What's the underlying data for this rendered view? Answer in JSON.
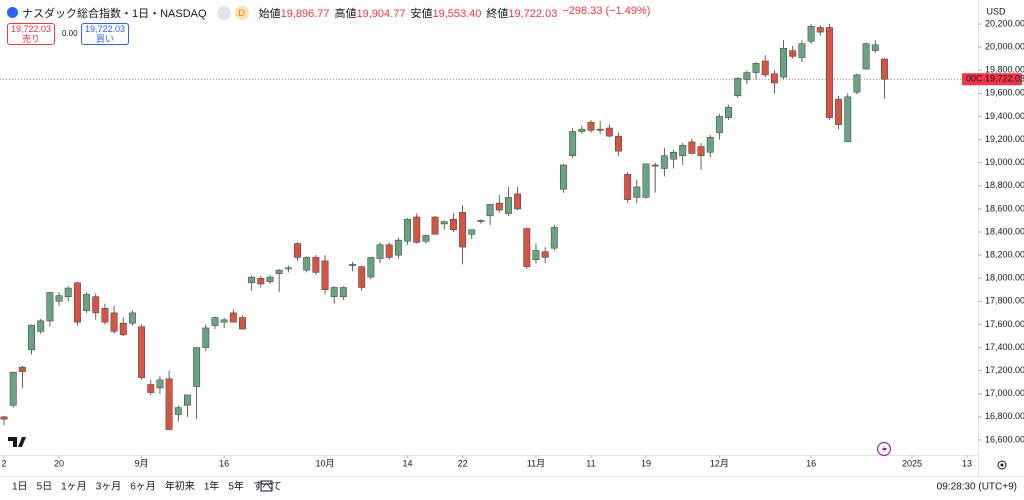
{
  "header": {
    "title": "ナスダック総合指数・1日・NASDAQ",
    "market_status": "D",
    "ohlc": [
      {
        "label": "始値",
        "value": "19,896.77"
      },
      {
        "label": "高値",
        "value": "19,904.77"
      },
      {
        "label": "安値",
        "value": "19,553.40"
      },
      {
        "label": "終値",
        "value": "19,722.03"
      }
    ],
    "change": "−298.33 (−1.49%)"
  },
  "trade_panel": {
    "sell_price": "19,722.03",
    "sell_label": "売り",
    "spread": "0.00",
    "buy_price": "19,722.03",
    "buy_label": "買い"
  },
  "axis_panel": {
    "currency": "USD",
    "countdown": "00C"
  },
  "chart_data": {
    "type": "candlestick",
    "up_color": "#6aa381",
    "down_color": "#d65443",
    "wick_color": "#3c3c3c",
    "grid": false,
    "last_price": {
      "value": 19722.03,
      "label": "19,722.03"
    },
    "last_price_color": "#f23645",
    "xlim": [
      -0.44,
      106.2
    ],
    "ylim": [
      16470,
      20408
    ],
    "xticks": [
      {
        "value": 0,
        "label": "2"
      },
      {
        "value": 6,
        "label": "20"
      },
      {
        "value": 15,
        "label": "9月"
      },
      {
        "value": 24,
        "label": "16"
      },
      {
        "value": 35,
        "label": "10月"
      },
      {
        "value": 44,
        "label": "14"
      },
      {
        "value": 50,
        "label": "22"
      },
      {
        "value": 58,
        "label": "11月"
      },
      {
        "value": 64,
        "label": "11"
      },
      {
        "value": 70,
        "label": "19"
      },
      {
        "value": 78,
        "label": "12月"
      },
      {
        "value": 88,
        "label": "16"
      },
      {
        "value": 99,
        "label": "2025"
      },
      {
        "value": 105,
        "label": "13"
      }
    ],
    "yticks": [
      {
        "value": 16600,
        "label": "16,600.00"
      },
      {
        "value": 16800,
        "label": "16,800.00"
      },
      {
        "value": 17000,
        "label": "17,000.00"
      },
      {
        "value": 17200,
        "label": "17,200.00"
      },
      {
        "value": 17400,
        "label": "17,400.00"
      },
      {
        "value": 17600,
        "label": "17,600.00"
      },
      {
        "value": 17800,
        "label": "17,800.00"
      },
      {
        "value": 18000,
        "label": "18,000.00"
      },
      {
        "value": 18200,
        "label": "18,200.00"
      },
      {
        "value": 18400,
        "label": "18,400.00"
      },
      {
        "value": 18600,
        "label": "18,600.00"
      },
      {
        "value": 18800,
        "label": "18,800.00"
      },
      {
        "value": 19000,
        "label": "19,000.00"
      },
      {
        "value": 19200,
        "label": "19,200.00"
      },
      {
        "value": 19400,
        "label": "19,400.00"
      },
      {
        "value": 19600,
        "label": "19,600.00"
      },
      {
        "value": 19800,
        "label": "19,800.00"
      },
      {
        "value": 20000,
        "label": "20,000.00"
      },
      {
        "value": 20200,
        "label": "20,200.00"
      }
    ],
    "open": [
      16800,
      16900,
      17230,
      17380,
      17540,
      17630,
      17800,
      17840,
      17960,
      17720,
      17840,
      17740,
      17700,
      17610,
      17610,
      17580,
      17080,
      17050,
      17130,
      16820,
      16900,
      17060,
      17400,
      17590,
      17620,
      17700,
      17660,
      17960,
      18000,
      17970,
      18040,
      18080,
      18300,
      18070,
      18180,
      18150,
      17840,
      17840,
      18110,
      18100,
      18010,
      18170,
      18290,
      18200,
      18320,
      18530,
      18320,
      18530,
      18470,
      18510,
      18570,
      18380,
      18490,
      18540,
      18650,
      18560,
      18730,
      18430,
      18160,
      18230,
      18260,
      18770,
      19060,
      19270,
      19350,
      19290,
      19300,
      19230,
      18900,
      18700,
      18700,
      18980,
      18950,
      19030,
      19060,
      19180,
      19140,
      19090,
      19260,
      19390,
      19580,
      19720,
      19780,
      19880,
      19770,
      19740,
      19970,
      19910,
      20050,
      20170,
      20170,
      19550,
      19180,
      19610,
      19810,
      19970,
      19896.77
    ],
    "high": [
      16810,
      17190,
      17240,
      17600,
      17650,
      17880,
      17880,
      17930,
      17970,
      17880,
      17870,
      17780,
      17760,
      17660,
      17720,
      17600,
      17120,
      17150,
      17200,
      16900,
      16990,
      17400,
      17600,
      17670,
      17660,
      17730,
      17680,
      18020,
      18020,
      18030,
      18080,
      18110,
      18310,
      18190,
      18200,
      18200,
      17930,
      17930,
      18140,
      18110,
      18180,
      18310,
      18310,
      18350,
      18520,
      18560,
      18380,
      18540,
      18500,
      18560,
      18630,
      18400,
      18510,
      18640,
      18720,
      18790,
      18790,
      18440,
      18300,
      18270,
      18460,
      18990,
      19300,
      19320,
      19370,
      19360,
      19330,
      19260,
      18920,
      18850,
      18990,
      19000,
      19130,
      19110,
      19170,
      19210,
      19170,
      19240,
      19420,
      19500,
      19740,
      19800,
      19870,
      19930,
      19800,
      20060,
      20010,
      20060,
      20200,
      20190,
      20200,
      19580,
      19600,
      19770,
      20040,
      20060,
      19904.77
    ],
    "low": [
      16730,
      16880,
      17050,
      17340,
      17520,
      17580,
      17760,
      17800,
      17590,
      17700,
      17640,
      17600,
      17520,
      17500,
      17590,
      17120,
      16990,
      17000,
      16690,
      16760,
      16800,
      16780,
      17370,
      17560,
      17570,
      17620,
      17560,
      17890,
      17920,
      17950,
      17880,
      18050,
      18150,
      18050,
      18030,
      17860,
      17780,
      17810,
      18060,
      17890,
      17990,
      18130,
      18160,
      18170,
      18290,
      18300,
      18300,
      18380,
      18420,
      18400,
      18120,
      18340,
      18470,
      18460,
      18570,
      18540,
      18590,
      18080,
      18130,
      18130,
      18240,
      18740,
      19040,
      19250,
      19260,
      19250,
      19220,
      19060,
      18650,
      18650,
      18690,
      18740,
      18880,
      18950,
      18980,
      19070,
      18940,
      19050,
      19200,
      19370,
      19560,
      19680,
      19720,
      19740,
      19600,
      19720,
      19900,
      19870,
      20030,
      20100,
      19370,
      19290,
      19180,
      19590,
      19810,
      19950,
      19553.4
    ],
    "close": [
      16780,
      17187,
      17192,
      17594,
      17631,
      17877,
      17850,
      17915,
      17620,
      17860,
      17700,
      17620,
      17540,
      17510,
      17700,
      17140,
      17010,
      17120,
      16690,
      16880,
      16990,
      17400,
      17570,
      17660,
      17640,
      17620,
      17560,
      18010,
      17950,
      18010,
      18070,
      18090,
      18180,
      18180,
      18050,
      17900,
      17920,
      17920,
      18120,
      17920,
      18180,
      18290,
      18180,
      18330,
      18510,
      18310,
      18370,
      18380,
      18490,
      18420,
      18270,
      18420,
      18500,
      18640,
      18590,
      18700,
      18600,
      18100,
      18240,
      18180,
      18440,
      18980,
      19270,
      19290,
      19280,
      19280,
      19230,
      19100,
      18680,
      18790,
      18990,
      18970,
      19060,
      19090,
      19150,
      19080,
      19060,
      19220,
      19400,
      19480,
      19730,
      19780,
      19860,
      19760,
      19690,
      19990,
      19920,
      20030,
      20180,
      20130,
      19390,
      19330,
      19570,
      19760,
      20030,
      20020,
      19722.03
    ]
  },
  "toolbar": {
    "ranges": [
      "1日",
      "5日",
      "1ヶ月",
      "3ヶ月",
      "6ヶ月",
      "年初来",
      "1年",
      "5年",
      "すべて"
    ],
    "clock": "09:28:30 (UTC+9)"
  }
}
